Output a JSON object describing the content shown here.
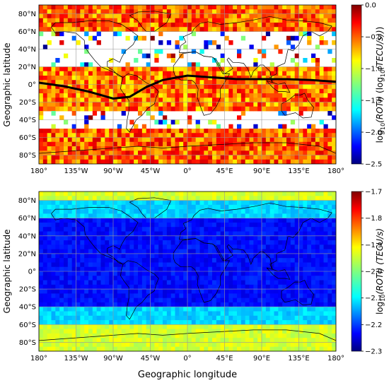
{
  "figure": {
    "xlabel": "Geographic longitude"
  },
  "chart_data": [
    {
      "type": "heatmap",
      "title": "",
      "ylabel": "Geographic latitude",
      "xlim": [
        -180,
        180
      ],
      "ylim": [
        -90,
        90
      ],
      "x_ticks": [
        -180,
        -135,
        -90,
        -45,
        0,
        45,
        90,
        135,
        180
      ],
      "x_tick_labels": [
        "180°",
        "135°W",
        "90°W",
        "45°W",
        "0°",
        "45°E",
        "90°E",
        "135°E",
        "180°"
      ],
      "y_ticks": [
        80,
        60,
        40,
        20,
        0,
        -20,
        -40,
        -60,
        -80
      ],
      "y_tick_labels": [
        "80°N",
        "60°N",
        "40°N",
        "20°N",
        "0°",
        "20°S",
        "40°S",
        "60°S",
        "80°S"
      ],
      "grid": true,
      "colorbar": {
        "label_prefix": "log",
        "label_sub": "10",
        "label_main": "(ROTI)",
        "label_suffix": "(log",
        "label_sub2": "10",
        "label_main2": "(TECU/s))",
        "label_end": ")",
        "min": -2.5,
        "max": 0.0,
        "ticks": [
          0.0,
          -0.5,
          -1.0,
          -1.5,
          -2.0,
          -2.5
        ],
        "tick_labels": [
          "0.0",
          "−0.5",
          "−1.0",
          "−1.5",
          "−2.0",
          "−2.5"
        ]
      },
      "bands": [
        {
          "lat_range": [
            60,
            90
          ],
          "typical_value": -0.55
        },
        {
          "lat_range": [
            20,
            60
          ],
          "typical_value": -1.7,
          "sparse": true
        },
        {
          "lat_range": [
            -30,
            20
          ],
          "typical_value": -0.6
        },
        {
          "lat_range": [
            -50,
            -30
          ],
          "typical_value": -1.5,
          "sparse": true
        },
        {
          "lat_range": [
            -90,
            -50
          ],
          "typical_value": -0.55
        }
      ],
      "overlay_line": {
        "name": "",
        "points": [
          [
            -180,
            2
          ],
          [
            -150,
            -2
          ],
          [
            -120,
            -8
          ],
          [
            -90,
            -16
          ],
          [
            -70,
            -14
          ],
          [
            -50,
            -3
          ],
          [
            -30,
            5
          ],
          [
            0,
            10
          ],
          [
            30,
            8
          ],
          [
            60,
            6
          ],
          [
            90,
            6
          ],
          [
            120,
            6
          ],
          [
            150,
            5
          ],
          [
            180,
            3
          ]
        ]
      }
    },
    {
      "type": "heatmap",
      "title": "",
      "ylabel": "Geographic latitude",
      "xlim": [
        -180,
        180
      ],
      "ylim": [
        -90,
        90
      ],
      "x_ticks": [
        -180,
        -135,
        -90,
        -45,
        0,
        45,
        90,
        135,
        180
      ],
      "x_tick_labels": [
        "180°",
        "135°W",
        "90°W",
        "45°W",
        "0°",
        "45°E",
        "90°E",
        "135°E",
        "180°"
      ],
      "y_ticks": [
        80,
        60,
        40,
        20,
        0,
        -20,
        -40,
        -60,
        -80
      ],
      "y_tick_labels": [
        "80°N",
        "60°N",
        "40°N",
        "20°N",
        "0°",
        "20°S",
        "40°S",
        "60°S",
        "80°S"
      ],
      "grid": true,
      "colorbar": {
        "label_prefix": "log",
        "label_sub": "10",
        "label_main": "(ROTI)",
        "label_suffix": "(TECU/s)",
        "min": -2.3,
        "max": -1.7,
        "ticks": [
          -1.7,
          -1.8,
          -1.9,
          -2.0,
          -2.1,
          -2.2,
          -2.3
        ],
        "tick_labels": [
          "−1.7",
          "−1.8",
          "−1.9",
          "−2.0",
          "−2.1",
          "−2.2",
          "−2.3"
        ]
      },
      "bands": [
        {
          "lat_range": [
            80,
            90
          ],
          "typical_value": -1.95
        },
        {
          "lat_range": [
            60,
            80
          ],
          "typical_value": -2.1
        },
        {
          "lat_range": [
            -40,
            60
          ],
          "typical_value": -2.22
        },
        {
          "lat_range": [
            -60,
            -40
          ],
          "typical_value": -2.1
        },
        {
          "lat_range": [
            -90,
            -60
          ],
          "typical_value": -1.95
        }
      ]
    }
  ]
}
